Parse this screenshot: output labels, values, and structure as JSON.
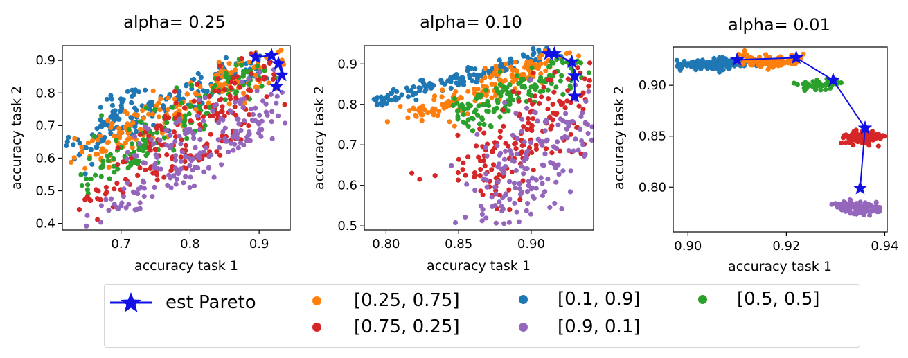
{
  "colors": {
    "c_25_75": "#ff7f0e",
    "c_1_9": "#1f77b4",
    "c_5_5": "#2ca02c",
    "c_75_25": "#d62728",
    "c_9_1": "#9467bd",
    "pareto": "#1010e6",
    "axis": "#000000"
  },
  "chart_data": [
    {
      "type": "scatter",
      "title": "alpha= 0.25",
      "xlabel": "accuracy task 1",
      "ylabel": "accuracy task 2",
      "xlim": [
        0.615,
        0.945
      ],
      "ylim": [
        0.38,
        0.945
      ],
      "xticks": [
        0.7,
        0.8,
        0.9
      ],
      "xtick_labels": [
        "0.7",
        "0.8",
        "0.9"
      ],
      "yticks": [
        0.4,
        0.5,
        0.6,
        0.7,
        0.8,
        0.9
      ],
      "ytick_labels": [
        "0.4",
        "0.5",
        "0.6",
        "0.7",
        "0.8",
        "0.9"
      ],
      "series": [
        {
          "name": "[0.1, 0.9]",
          "color_key": "c_1_9",
          "clusters": [
            {
              "x0": 0.62,
              "y0": 0.62,
              "x1": 0.9,
              "y1": 0.9,
              "spread": 0.025,
              "n": 160
            },
            {
              "x0": 0.67,
              "y0": 0.7,
              "x1": 0.72,
              "y1": 0.8,
              "spread": 0.015,
              "n": 30
            }
          ]
        },
        {
          "name": "[0.25, 0.75]",
          "color_key": "c_25_75",
          "clusters": [
            {
              "x0": 0.64,
              "y0": 0.6,
              "x1": 0.92,
              "y1": 0.9,
              "spread": 0.03,
              "n": 170
            }
          ]
        },
        {
          "name": "[0.5, 0.5]",
          "color_key": "c_5_5",
          "clusters": [
            {
              "x0": 0.65,
              "y0": 0.53,
              "x1": 0.91,
              "y1": 0.89,
              "spread": 0.035,
              "n": 150
            }
          ]
        },
        {
          "name": "[0.75, 0.25]",
          "color_key": "c_75_25",
          "clusters": [
            {
              "x0": 0.65,
              "y0": 0.47,
              "x1": 0.88,
              "y1": 0.68,
              "spread": 0.02,
              "n": 70
            },
            {
              "x0": 0.72,
              "y0": 0.62,
              "x1": 0.92,
              "y1": 0.86,
              "spread": 0.04,
              "n": 110
            }
          ]
        },
        {
          "name": "[0.9, 0.1]",
          "color_key": "c_9_1",
          "clusters": [
            {
              "x0": 0.66,
              "y0": 0.42,
              "x1": 0.9,
              "y1": 0.68,
              "spread": 0.025,
              "n": 90
            },
            {
              "x0": 0.73,
              "y0": 0.6,
              "x1": 0.93,
              "y1": 0.8,
              "spread": 0.05,
              "n": 110
            }
          ]
        }
      ],
      "pareto": {
        "x": [
          0.895,
          0.918,
          0.928,
          0.933,
          0.925
        ],
        "y": [
          0.91,
          0.915,
          0.89,
          0.855,
          0.82
        ]
      }
    },
    {
      "type": "scatter",
      "title": "alpha= 0.10",
      "xlabel": "accuracy task 1",
      "ylabel": "accuracy task 2",
      "xlim": [
        0.785,
        0.943
      ],
      "ylim": [
        0.49,
        0.945
      ],
      "xticks": [
        0.8,
        0.85,
        0.9
      ],
      "xtick_labels": [
        "0.80",
        "0.85",
        "0.90"
      ],
      "yticks": [
        0.5,
        0.6,
        0.7,
        0.8,
        0.9
      ],
      "ytick_labels": [
        "0.5",
        "0.6",
        "0.7",
        "0.8",
        "0.9"
      ],
      "series": [
        {
          "name": "[0.1, 0.9]",
          "color_key": "c_1_9",
          "clusters": [
            {
              "x0": 0.79,
              "y0": 0.8,
              "x1": 0.915,
              "y1": 0.93,
              "spread": 0.01,
              "n": 140
            }
          ]
        },
        {
          "name": "[0.25, 0.75]",
          "color_key": "c_25_75",
          "clusters": [
            {
              "x0": 0.815,
              "y0": 0.765,
              "x1": 0.92,
              "y1": 0.92,
              "spread": 0.015,
              "n": 160
            }
          ]
        },
        {
          "name": "[0.5, 0.5]",
          "color_key": "c_5_5",
          "clusters": [
            {
              "x0": 0.85,
              "y0": 0.76,
              "x1": 0.93,
              "y1": 0.9,
              "spread": 0.02,
              "n": 140
            }
          ]
        },
        {
          "name": "[0.75, 0.25]",
          "color_key": "c_75_25",
          "clusters": [
            {
              "x0": 0.86,
              "y0": 0.58,
              "x1": 0.94,
              "y1": 0.86,
              "spread": 0.035,
              "n": 170
            }
          ]
        },
        {
          "name": "[0.9, 0.1]",
          "color_key": "c_9_1",
          "clusters": [
            {
              "x0": 0.87,
              "y0": 0.52,
              "x1": 0.93,
              "y1": 0.8,
              "spread": 0.035,
              "n": 180
            }
          ]
        }
      ],
      "pareto": {
        "x": [
          0.912,
          0.916,
          0.928,
          0.93,
          0.93
        ],
        "y": [
          0.925,
          0.925,
          0.905,
          0.87,
          0.82
        ]
      }
    },
    {
      "type": "scatter",
      "title": "alpha= 0.01",
      "xlabel": "accuracy task 1",
      "ylabel": "accuracy task 2",
      "xlim": [
        0.897,
        0.9405
      ],
      "ylim": [
        0.756,
        0.9375
      ],
      "xticks": [
        0.9,
        0.92,
        0.94
      ],
      "xtick_labels": [
        "0.90",
        "0.92",
        "0.94"
      ],
      "yticks": [
        0.8,
        0.85,
        0.9
      ],
      "ytick_labels": [
        "0.80",
        "0.85",
        "0.90"
      ],
      "series": [
        {
          "name": "[0.1, 0.9]",
          "color_key": "c_1_9",
          "clusters": [
            {
              "x0": 0.898,
              "y0": 0.92,
              "x1": 0.911,
              "y1": 0.922,
              "spread": 0.003,
              "n": 120
            }
          ]
        },
        {
          "name": "[0.25, 0.75]",
          "color_key": "c_25_75",
          "clusters": [
            {
              "x0": 0.911,
              "y0": 0.924,
              "x1": 0.922,
              "y1": 0.924,
              "spread": 0.003,
              "n": 90
            }
          ]
        },
        {
          "name": "[0.5, 0.5]",
          "color_key": "c_5_5",
          "clusters": [
            {
              "x0": 0.923,
              "y0": 0.898,
              "x1": 0.93,
              "y1": 0.902,
              "spread": 0.0025,
              "n": 60
            }
          ]
        },
        {
          "name": "[0.75, 0.25]",
          "color_key": "c_75_25",
          "clusters": [
            {
              "x0": 0.932,
              "y0": 0.85,
              "x1": 0.938,
              "y1": 0.848,
              "spread": 0.0028,
              "n": 90
            }
          ]
        },
        {
          "name": "[0.9, 0.1]",
          "color_key": "c_9_1",
          "clusters": [
            {
              "x0": 0.931,
              "y0": 0.782,
              "x1": 0.938,
              "y1": 0.778,
              "spread": 0.0028,
              "n": 110
            }
          ]
        }
      ],
      "pareto": {
        "x": [
          0.91,
          0.922,
          0.9295,
          0.936,
          0.935
        ],
        "y": [
          0.925,
          0.927,
          0.905,
          0.858,
          0.799
        ]
      }
    }
  ],
  "legend": {
    "items": [
      {
        "label": "est Pareto",
        "kind": "pareto",
        "color_key": "pareto"
      },
      {
        "label": "[0.25, 0.75]",
        "kind": "dot",
        "color_key": "c_25_75"
      },
      {
        "label": "[0.1, 0.9]",
        "kind": "dot",
        "color_key": "c_1_9"
      },
      {
        "label": "[0.5, 0.5]",
        "kind": "dot",
        "color_key": "c_5_5"
      },
      {
        "label": "[0.75, 0.25]",
        "kind": "dot",
        "color_key": "c_75_25"
      },
      {
        "label": "[0.9, 0.1]",
        "kind": "dot",
        "color_key": "c_9_1"
      }
    ]
  }
}
